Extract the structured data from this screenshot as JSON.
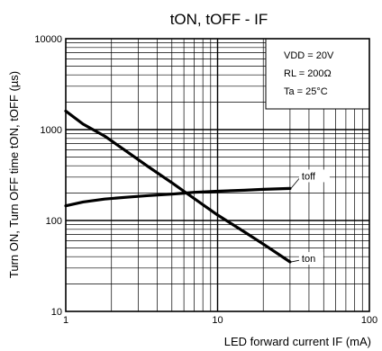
{
  "chart_data": {
    "type": "line",
    "title": "tON, tOFF - IF",
    "xlabel": "LED forward current IF (mA)",
    "ylabel": "Turn ON, Turn OFF time tON, tOFF (µs)",
    "x_scale": "log",
    "y_scale": "log",
    "xlim": [
      1,
      100
    ],
    "ylim": [
      10,
      10000
    ],
    "x_ticks": [
      "1",
      "10",
      "100"
    ],
    "y_ticks": [
      "10",
      "100",
      "1000",
      "10000"
    ],
    "grid": true,
    "conditions": [
      "VDD = 20V",
      "RL = 200Ω",
      "Ta = 25°C"
    ],
    "series": [
      {
        "name": "toff",
        "x": [
          1,
          1.3,
          1.8,
          2.5,
          3.5,
          5,
          6,
          7,
          10,
          15,
          20,
          30
        ],
        "y": [
          145,
          160,
          172,
          180,
          188,
          195,
          200,
          204,
          210,
          215,
          220,
          225
        ]
      },
      {
        "name": "ton",
        "x": [
          1,
          1.3,
          1.8,
          2.5,
          3.5,
          5,
          6,
          7,
          10,
          15,
          20,
          30
        ],
        "y": [
          1600,
          1150,
          850,
          580,
          390,
          260,
          210,
          175,
          115,
          75,
          55,
          35
        ]
      }
    ]
  }
}
